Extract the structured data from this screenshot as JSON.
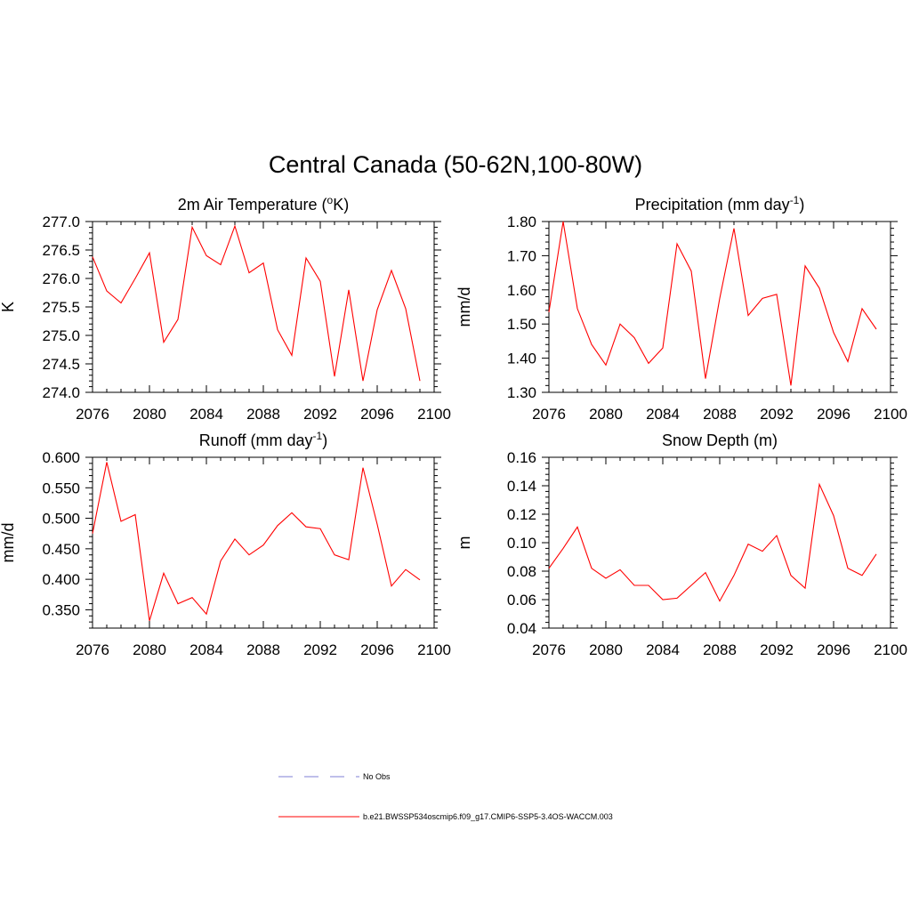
{
  "figure": {
    "title": "Central Canada (50-62N,100-80W)"
  },
  "legend": {
    "items": [
      {
        "label": "No Obs",
        "color": "#9999dd",
        "dash": true
      },
      {
        "label": "b.e21.BWSSP534oscmip6.f09_g17.CMIP6-SSP5-3.4OS-WACCM.003",
        "color": "#ff0000",
        "dash": false
      }
    ]
  },
  "chart_data": [
    {
      "type": "line",
      "title": {
        "text": "2m Air Temperature (",
        "sup": "o",
        "tail": "K)"
      },
      "xlabel": "",
      "ylabel": "K",
      "xlim": [
        2076,
        2100
      ],
      "ylim": [
        274.0,
        277.0
      ],
      "yticks": [
        274.0,
        274.5,
        275.0,
        275.5,
        276.0,
        276.5,
        277.0
      ],
      "ytick_labels": [
        "274.0",
        "274.5",
        "275.0",
        "275.5",
        "276.0",
        "276.5",
        "277.0"
      ],
      "xticks": [
        2076,
        2080,
        2084,
        2088,
        2092,
        2096,
        2100
      ],
      "xtick_labels": [
        "2076",
        "2080",
        "2084",
        "2088",
        "2092",
        "2096",
        "2100"
      ],
      "series": [
        {
          "name": "b.e21.BWSSP534oscmip6.f09_g17.CMIP6-SSP5-3.4OS-WACCM.003",
          "color": "#ff0000",
          "x": [
            2076,
            2077,
            2078,
            2079,
            2080,
            2081,
            2082,
            2083,
            2084,
            2085,
            2086,
            2087,
            2088,
            2089,
            2090,
            2091,
            2092,
            2093,
            2094,
            2095,
            2096,
            2097,
            2098,
            2099
          ],
          "y": [
            276.38,
            275.78,
            275.57,
            276.0,
            276.45,
            274.88,
            275.28,
            276.9,
            276.4,
            276.24,
            276.92,
            276.1,
            276.27,
            275.1,
            274.65,
            276.36,
            275.95,
            274.28,
            275.8,
            274.2,
            275.45,
            276.14,
            275.47,
            274.2
          ]
        }
      ]
    },
    {
      "type": "line",
      "title": {
        "text": "Precipitation (mm day",
        "sup": "-1",
        "tail": ")"
      },
      "xlabel": "",
      "ylabel": "mm/d",
      "xlim": [
        2076,
        2100
      ],
      "ylim": [
        1.3,
        1.8
      ],
      "yticks": [
        1.3,
        1.4,
        1.5,
        1.6,
        1.7,
        1.8
      ],
      "ytick_labels": [
        "1.30",
        "1.40",
        "1.50",
        "1.60",
        "1.70",
        "1.80"
      ],
      "xticks": [
        2076,
        2080,
        2084,
        2088,
        2092,
        2096,
        2100
      ],
      "xtick_labels": [
        "2076",
        "2080",
        "2084",
        "2088",
        "2092",
        "2096",
        "2100"
      ],
      "series": [
        {
          "name": "b.e21.BWSSP534oscmip6.f09_g17.CMIP6-SSP5-3.4OS-WACCM.003",
          "color": "#ff0000",
          "x": [
            2076,
            2077,
            2078,
            2079,
            2080,
            2081,
            2082,
            2083,
            2084,
            2085,
            2086,
            2087,
            2088,
            2089,
            2090,
            2091,
            2092,
            2093,
            2094,
            2095,
            2096,
            2097,
            2098,
            2099
          ],
          "y": [
            1.535,
            1.8,
            1.545,
            1.44,
            1.38,
            1.5,
            1.46,
            1.385,
            1.43,
            1.735,
            1.655,
            1.34,
            1.575,
            1.78,
            1.525,
            1.575,
            1.587,
            1.32,
            1.67,
            1.605,
            1.475,
            1.39,
            1.545,
            1.485
          ]
        }
      ]
    },
    {
      "type": "line",
      "title": {
        "text": "Runoff (mm day",
        "sup": "-1",
        "tail": ")"
      },
      "xlabel": "",
      "ylabel": "mm/d",
      "xlim": [
        2076,
        2100
      ],
      "ylim": [
        0.32,
        0.6
      ],
      "yticks": [
        0.35,
        0.4,
        0.45,
        0.5,
        0.55,
        0.6
      ],
      "ytick_labels": [
        "0.350",
        "0.400",
        "0.450",
        "0.500",
        "0.550",
        "0.600"
      ],
      "xticks": [
        2076,
        2080,
        2084,
        2088,
        2092,
        2096,
        2100
      ],
      "xtick_labels": [
        "2076",
        "2080",
        "2084",
        "2088",
        "2092",
        "2096",
        "2100"
      ],
      "series": [
        {
          "name": "b.e21.BWSSP534oscmip6.f09_g17.CMIP6-SSP5-3.4OS-WACCM.003",
          "color": "#ff0000",
          "x": [
            2076,
            2077,
            2078,
            2079,
            2080,
            2081,
            2082,
            2083,
            2084,
            2085,
            2086,
            2087,
            2088,
            2089,
            2090,
            2091,
            2092,
            2093,
            2094,
            2095,
            2096,
            2097,
            2098,
            2099
          ],
          "y": [
            0.475,
            0.592,
            0.495,
            0.506,
            0.332,
            0.41,
            0.36,
            0.37,
            0.343,
            0.43,
            0.466,
            0.44,
            0.456,
            0.488,
            0.509,
            0.486,
            0.483,
            0.44,
            0.432,
            0.583,
            0.49,
            0.389,
            0.416,
            0.399
          ]
        }
      ]
    },
    {
      "type": "line",
      "title": {
        "text": "Snow Depth (m)",
        "sup": "",
        "tail": ""
      },
      "xlabel": "",
      "ylabel": "m",
      "xlim": [
        2076,
        2100
      ],
      "ylim": [
        0.04,
        0.16
      ],
      "yticks": [
        0.04,
        0.06,
        0.08,
        0.1,
        0.12,
        0.14,
        0.16
      ],
      "ytick_labels": [
        "0.04",
        "0.06",
        "0.08",
        "0.10",
        "0.12",
        "0.14",
        "0.16"
      ],
      "xticks": [
        2076,
        2080,
        2084,
        2088,
        2092,
        2096,
        2100
      ],
      "xtick_labels": [
        "2076",
        "2080",
        "2084",
        "2088",
        "2092",
        "2096",
        "2100"
      ],
      "series": [
        {
          "name": "b.e21.BWSSP534oscmip6.f09_g17.CMIP6-SSP5-3.4OS-WACCM.003",
          "color": "#ff0000",
          "x": [
            2076,
            2077,
            2078,
            2079,
            2080,
            2081,
            2082,
            2083,
            2084,
            2085,
            2086,
            2087,
            2088,
            2089,
            2090,
            2091,
            2092,
            2093,
            2094,
            2095,
            2096,
            2097,
            2098,
            2099
          ],
          "y": [
            0.082,
            0.096,
            0.111,
            0.082,
            0.075,
            0.081,
            0.07,
            0.07,
            0.06,
            0.061,
            0.07,
            0.079,
            0.059,
            0.077,
            0.099,
            0.094,
            0.105,
            0.077,
            0.068,
            0.141,
            0.119,
            0.082,
            0.077,
            0.092
          ]
        }
      ]
    }
  ]
}
